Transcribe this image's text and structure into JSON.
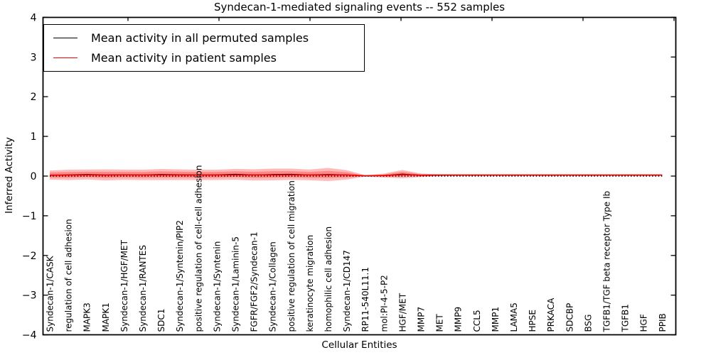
{
  "title": "Syndecan-1-mediated signaling events -- 552 samples",
  "legend": {
    "items": [
      {
        "label": "Mean activity in all permuted samples",
        "color": "#000000"
      },
      {
        "label": "Mean activity in patient samples",
        "color": "#ff0000"
      }
    ]
  },
  "chart_data": {
    "type": "line",
    "title": "Syndecan-1-mediated signaling events -- 552 samples",
    "xlabel": "Cellular Entities",
    "ylabel": "Inferred Activity",
    "ylim": [
      -4,
      4
    ],
    "yticks": [
      -4,
      -3,
      -2,
      -1,
      0,
      1,
      2,
      3,
      4
    ],
    "grid": false,
    "legend_position": "upper left",
    "band_color": "#ff0000",
    "band_opacity": 0.27,
    "categories": [
      "Syndecan-1/CASK",
      "regulation of cell adhesion",
      "MAPK3",
      "MAPK1",
      "Syndecan-1/HGF/MET",
      "Syndecan-1/RANTES",
      "SDC1",
      "Syndecan-1/Syntenin/PIP2",
      "positive regulation of cell-cell adhesion",
      "Syndecan-1/Syntenin",
      "Syndecan-1/Laminin-5",
      "FGFR/FGF2/Syndecan-1",
      "Syndecan-1/Collagen",
      "positive regulation of cell migration",
      "keratinocyte migration",
      "homophilic cell adhesion",
      "Syndecan-1/CD147",
      "RP11-540L11.1",
      "mol:PI-4-5-P2",
      "HGF/MET",
      "MMP7",
      "MET",
      "MMP9",
      "CCL5",
      "MMP1",
      "LAMA5",
      "HPSE",
      "PRKACA",
      "SDCBP",
      "BSG",
      "TGFB1/TGF beta receptor Type Ib",
      "TGFB1",
      "HGF",
      "PPIB"
    ],
    "series": [
      {
        "name": "Mean activity in all permuted samples",
        "color": "#000000",
        "style": "solid",
        "values": [
          0.025,
          0.03,
          0.04,
          0.03,
          0.035,
          0.03,
          0.04,
          0.035,
          0.03,
          0.032,
          0.045,
          0.03,
          0.04,
          0.045,
          0.03,
          0.04,
          0.03,
          0.005,
          0.012,
          0.05,
          0.02,
          0.022,
          0.022,
          0.022,
          0.022,
          0.022,
          0.022,
          0.022,
          0.022,
          0.022,
          0.022,
          0.022,
          0.022,
          0.022
        ]
      },
      {
        "name": "Mean activity in patient samples",
        "color": "#ff0000",
        "style": "solid",
        "values": [
          0.02,
          0.025,
          0.03,
          0.025,
          0.03,
          0.028,
          0.03,
          0.028,
          0.026,
          0.028,
          0.03,
          0.028,
          0.03,
          0.032,
          0.028,
          0.03,
          0.028,
          0.008,
          0.015,
          0.035,
          0.025,
          0.03,
          0.03,
          0.03,
          0.03,
          0.03,
          0.03,
          0.03,
          0.03,
          0.03,
          0.03,
          0.03,
          0.03,
          0.03
        ]
      },
      {
        "name": "zero reference",
        "color": "#000000",
        "style": "dotted",
        "values": [
          0,
          0,
          0,
          0,
          0,
          0,
          0,
          0,
          0,
          0,
          0,
          0,
          0,
          0,
          0,
          0,
          0,
          0,
          0,
          0,
          0,
          0,
          0,
          0,
          0,
          0,
          0,
          0,
          0,
          0,
          0,
          0,
          0,
          0
        ]
      }
    ],
    "bands": [
      {
        "name": "std band",
        "halfwidths": [
          0.115,
          0.13,
          0.125,
          0.14,
          0.128,
          0.13,
          0.14,
          0.134,
          0.13,
          0.13,
          0.136,
          0.142,
          0.148,
          0.142,
          0.136,
          0.165,
          0.12,
          0.016,
          0.05,
          0.105,
          0.045,
          0.02,
          0.015,
          0.013,
          0.013,
          0.013,
          0.013,
          0.013,
          0.013,
          0.013,
          0.013,
          0.013,
          0.013,
          0.013
        ]
      },
      {
        "name": "sem band",
        "halfwidths": [
          0.065,
          0.072,
          0.07,
          0.078,
          0.07,
          0.072,
          0.078,
          0.074,
          0.072,
          0.072,
          0.075,
          0.078,
          0.082,
          0.078,
          0.075,
          0.09,
          0.066,
          0.009,
          0.028,
          0.058,
          0.025,
          0.011,
          0.008,
          0.007,
          0.007,
          0.007,
          0.007,
          0.007,
          0.007,
          0.007,
          0.007,
          0.007,
          0.007,
          0.007
        ]
      }
    ]
  }
}
